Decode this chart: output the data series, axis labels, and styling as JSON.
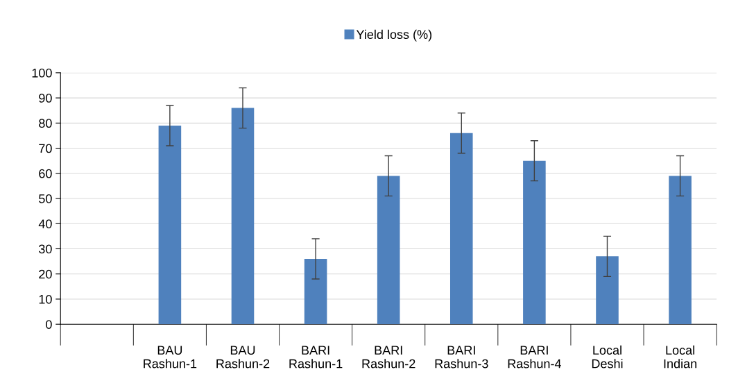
{
  "chart_data": {
    "type": "bar",
    "categories": [
      null,
      "BAU\nRashun-1",
      "BAU\nRashun-2",
      "BARI\nRashun-1",
      "BARI\nRashun-2",
      "BARI\nRashun-3",
      "BARI\nRashun-4",
      "Local\nDeshi",
      "Local\nIndian"
    ],
    "series": [
      {
        "name": "Yield loss (%)",
        "color": "#4f81bd",
        "values": [
          null,
          79,
          86,
          26,
          59,
          76,
          65,
          27,
          59
        ],
        "errors": [
          null,
          8,
          8,
          8,
          8,
          8,
          8,
          8,
          8
        ]
      }
    ],
    "ylim": [
      0,
      100
    ],
    "yticks": [
      0,
      10,
      20,
      30,
      40,
      50,
      60,
      70,
      80,
      90,
      100
    ],
    "grid": "y",
    "legend": "top"
  }
}
